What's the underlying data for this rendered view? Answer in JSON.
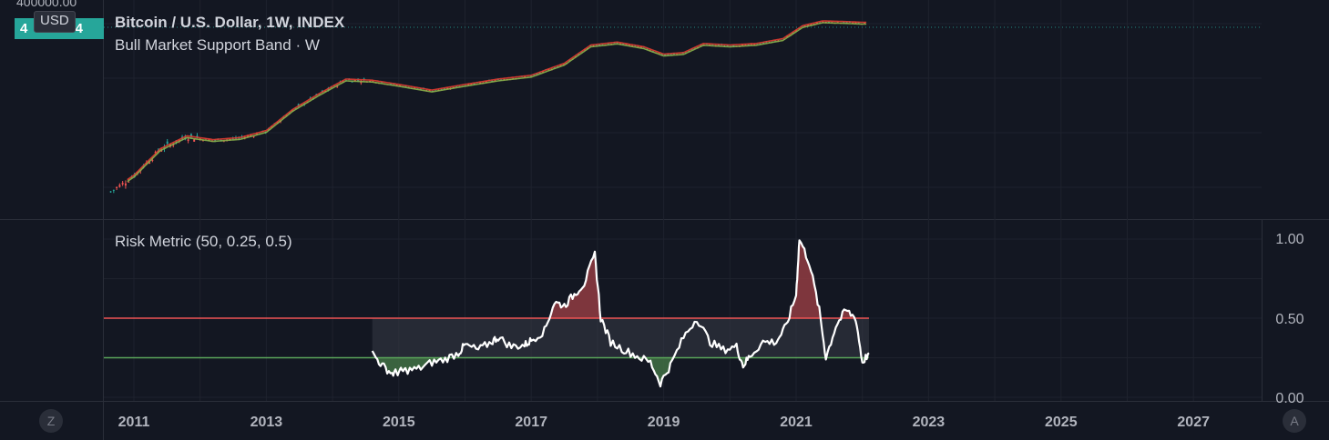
{
  "header": {
    "title": "Bitcoin / U.S. Dollar, 1W, INDEX",
    "subtitle": "Bull Market Support Band · W",
    "price_scale_top": "400000.00",
    "price_badge": "4",
    "price_badge_tail": "74",
    "currency": "USD"
  },
  "indicator": {
    "title": "Risk Metric (50, 0.25, 0.5)"
  },
  "buttons": {
    "left": "Z",
    "right": "A"
  },
  "colors": {
    "background": "#131722",
    "grid": "#1e222d",
    "risk_line": "#ffffff",
    "upper_threshold": "#f05454",
    "lower_threshold": "#5aa55a",
    "upper_fill": "#8b3a40",
    "lower_fill": "#3f6b42",
    "mid_fill": "#363a45",
    "candle_up": "#26a69a",
    "candle_down": "#ef5350",
    "band_sma": "#e03c31",
    "band_ema": "#8bb04a",
    "last_price_line": "#26a69a"
  },
  "chart_data": [
    {
      "type": "line",
      "title": "Bitcoin / U.S. Dollar, 1W, INDEX",
      "scale": "log",
      "series": [
        {
          "name": "Bull Market Support Band",
          "x": [
            2010.6,
            2011.0,
            2011.4,
            2011.8,
            2012.2,
            2012.6,
            2013.0,
            2013.4,
            2013.8,
            2014.2,
            2014.6,
            2015.0,
            2015.5,
            2016.0,
            2016.5,
            2017.0,
            2017.5,
            2017.9,
            2018.3,
            2018.7,
            2019.0,
            2019.3,
            2019.6,
            2020.0,
            2020.4,
            2020.8,
            2021.1,
            2021.4,
            2021.7,
            2022.0
          ],
          "values": [
            0.1,
            0.4,
            3,
            8,
            6,
            7,
            12,
            60,
            200,
            600,
            550,
            400,
            260,
            400,
            600,
            800,
            2000,
            8000,
            10000,
            7000,
            4000,
            4500,
            9000,
            8000,
            9000,
            13000,
            35000,
            50000,
            48000,
            45000
          ]
        }
      ],
      "x_ticks": [
        "2011",
        "2013",
        "2015",
        "2017",
        "2019",
        "2021",
        "2023",
        "2025",
        "2027"
      ],
      "price_label": "400000.00"
    },
    {
      "type": "area",
      "title": "Risk Metric (50, 0.25, 0.5)",
      "ylim": [
        0,
        1
      ],
      "y_ticks": [
        "1.00",
        "0.50",
        "0.00"
      ],
      "thresholds": [
        0.5,
        0.25
      ],
      "series": [
        {
          "x": [
            2014.6,
            2014.75,
            2014.9,
            2015.0,
            2015.1,
            2015.3,
            2015.5,
            2015.7,
            2015.9,
            2016.0,
            2016.2,
            2016.4,
            2016.5,
            2016.7,
            2016.9,
            2017.0,
            2017.2,
            2017.35,
            2017.5,
            2017.65,
            2017.8,
            2017.96,
            2018.05,
            2018.2,
            2018.4,
            2018.6,
            2018.8,
            2018.95,
            2019.1,
            2019.3,
            2019.5,
            2019.7,
            2019.9,
            2020.1,
            2020.2,
            2020.3,
            2020.5,
            2020.7,
            2020.85,
            2021.0,
            2021.05,
            2021.2,
            2021.35,
            2021.45,
            2021.6,
            2021.75,
            2021.9,
            2022.0,
            2022.1
          ],
          "values": [
            0.28,
            0.2,
            0.15,
            0.16,
            0.17,
            0.18,
            0.22,
            0.24,
            0.28,
            0.33,
            0.3,
            0.35,
            0.38,
            0.32,
            0.33,
            0.36,
            0.42,
            0.6,
            0.58,
            0.65,
            0.72,
            0.9,
            0.5,
            0.35,
            0.3,
            0.26,
            0.22,
            0.09,
            0.2,
            0.38,
            0.5,
            0.35,
            0.3,
            0.32,
            0.2,
            0.26,
            0.35,
            0.35,
            0.45,
            0.65,
            1.0,
            0.85,
            0.55,
            0.25,
            0.45,
            0.55,
            0.5,
            0.22,
            0.28
          ]
        }
      ],
      "x_ticks": [
        "2011",
        "2013",
        "2015",
        "2017",
        "2019",
        "2021",
        "2023",
        "2025",
        "2027"
      ]
    }
  ]
}
